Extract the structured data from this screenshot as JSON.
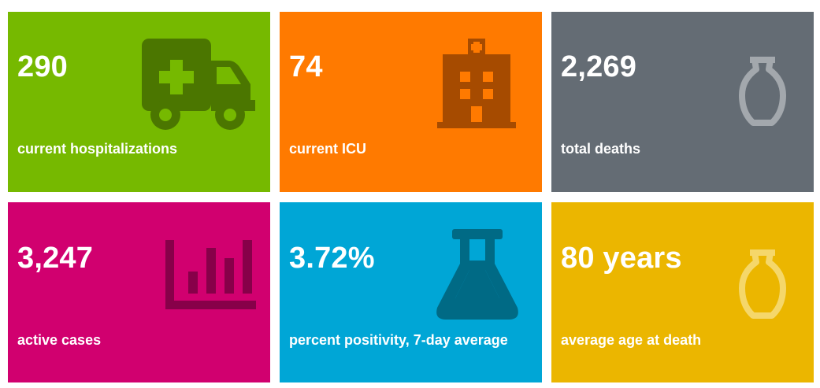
{
  "tiles": [
    {
      "value": "290",
      "label": "current hospitalizations",
      "icon": "ambulance-icon",
      "color": "#76b900",
      "icon_color": "#4b7600"
    },
    {
      "value": "74",
      "label": "current ICU",
      "icon": "hospital-icon",
      "color": "#ff7a00",
      "icon_color": "#a64b00"
    },
    {
      "value": "2,269",
      "label": "total deaths",
      "icon": "urn-icon",
      "color": "#646c74",
      "icon_color": "#a3a8ad"
    },
    {
      "value": "3,247",
      "label": "active cases",
      "icon": "bar-chart-icon",
      "color": "#d1006f",
      "icon_color": "#870049"
    },
    {
      "value": "3.72%",
      "label": "percent positivity, 7-day average",
      "icon": "flask-icon",
      "color": "#00a6d6",
      "icon_color": "#006a85"
    },
    {
      "value": "80 years",
      "label": "average age at death",
      "icon": "urn-icon",
      "color": "#ebb600",
      "icon_color": "#f5d76a"
    }
  ]
}
